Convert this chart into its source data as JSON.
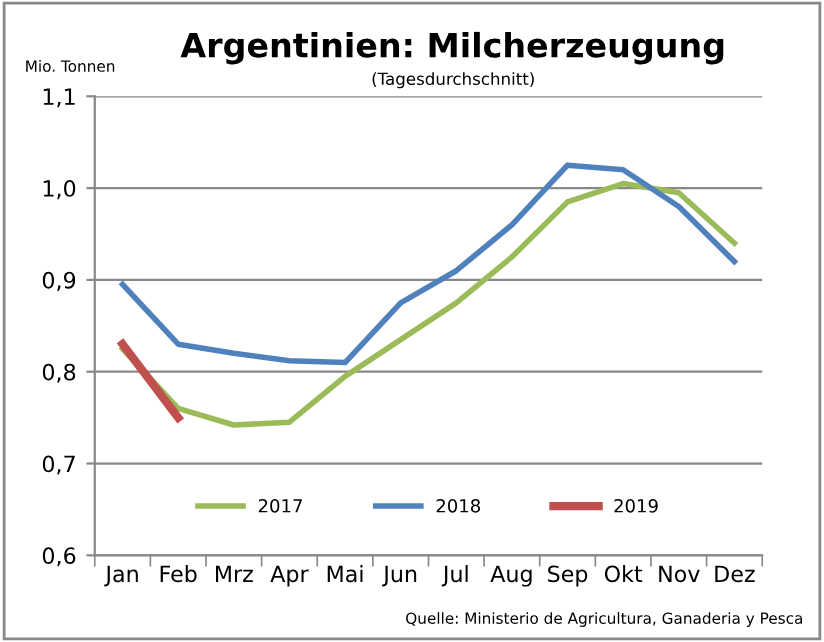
{
  "chart_data": {
    "type": "line",
    "title": "Argentinien: Milcherzeugung",
    "subtitle": "(Tagesdurchschnitt)",
    "ylabel": "Mio. Tonnen",
    "categories": [
      "Jan",
      "Feb",
      "Mrz",
      "Apr",
      "Mai",
      "Jun",
      "Jul",
      "Aug",
      "Sep",
      "Okt",
      "Nov",
      "Dez"
    ],
    "series": [
      {
        "name": "2017",
        "color": "#9bbb59",
        "values": [
          0.825,
          0.76,
          0.742,
          0.745,
          0.795,
          0.835,
          0.875,
          0.925,
          0.985,
          1.005,
          0.995,
          0.94
        ]
      },
      {
        "name": "2018",
        "color": "#4f81bd",
        "values": [
          0.895,
          0.83,
          0.82,
          0.812,
          0.81,
          0.875,
          0.91,
          0.96,
          1.025,
          1.02,
          0.98,
          0.92
        ]
      },
      {
        "name": "2019",
        "color": "#c0504d",
        "values": [
          0.83,
          0.75,
          null,
          null,
          null,
          null,
          null,
          null,
          null,
          null,
          null,
          null
        ]
      }
    ],
    "ylim": [
      0.6,
      1.1
    ],
    "yticks": [
      {
        "value": 0.6,
        "label": "0,6"
      },
      {
        "value": 0.7,
        "label": "0,7"
      },
      {
        "value": 0.8,
        "label": "0,8"
      },
      {
        "value": 0.9,
        "label": "0,9"
      },
      {
        "value": 1.0,
        "label": "1,0"
      },
      {
        "value": 1.1,
        "label": "1,1"
      }
    ],
    "grid": "y",
    "legend": "bottom",
    "marker": "none",
    "line_style": "solid",
    "annotations": [
      "Quelle: Ministerio de Agricultura, Ganaderia y Pesca"
    ]
  }
}
